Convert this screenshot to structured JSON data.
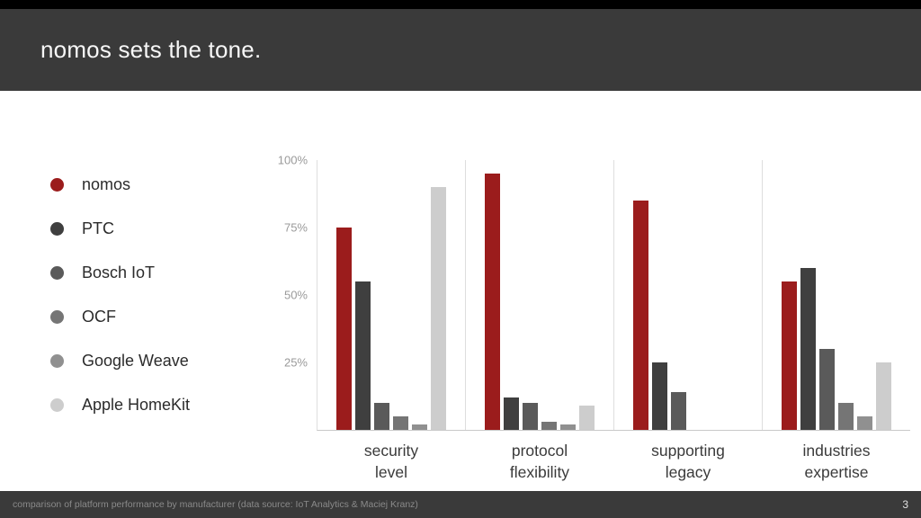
{
  "header": {
    "title": "nomos sets the tone."
  },
  "legend": {
    "items": [
      {
        "label": "nomos",
        "color": "#9b1c1c"
      },
      {
        "label": "PTC",
        "color": "#3f3f3f"
      },
      {
        "label": "Bosch IoT",
        "color": "#5a5a5a"
      },
      {
        "label": "OCF",
        "color": "#757575"
      },
      {
        "label": "Google Weave",
        "color": "#909090"
      },
      {
        "label": "Apple HomeKit",
        "color": "#cdcdcd"
      }
    ]
  },
  "chart_data": {
    "type": "bar",
    "title": "nomos sets the tone.",
    "categories": [
      "security\nlevel",
      "protocol\nflexibility",
      "supporting\nlegacy",
      "industries\nexpertise"
    ],
    "series": [
      {
        "name": "nomos",
        "color": "#9b1c1c",
        "values": [
          75,
          95,
          85,
          55
        ]
      },
      {
        "name": "PTC",
        "color": "#3f3f3f",
        "values": [
          55,
          12,
          25,
          60
        ]
      },
      {
        "name": "Bosch IoT",
        "color": "#5a5a5a",
        "values": [
          10,
          10,
          14,
          30
        ]
      },
      {
        "name": "OCF",
        "color": "#757575",
        "values": [
          5,
          3,
          0,
          10
        ]
      },
      {
        "name": "Google Weave",
        "color": "#909090",
        "values": [
          2,
          2,
          0,
          5
        ]
      },
      {
        "name": "Apple HomeKit",
        "color": "#cdcdcd",
        "values": [
          90,
          9,
          0,
          25
        ]
      }
    ],
    "yticks": [
      {
        "label": "100%",
        "value": 100
      },
      {
        "label": "75%",
        "value": 75
      },
      {
        "label": "50%",
        "value": 50
      },
      {
        "label": "25%",
        "value": 25
      }
    ],
    "ylim": [
      0,
      100
    ],
    "grid": "vertical-separators-only",
    "legend_position": "left"
  },
  "footer": {
    "caption": "comparison of platform performance by manufacturer (data source: IoT Analytics & Maciej Kranz)",
    "page_number": "3"
  }
}
